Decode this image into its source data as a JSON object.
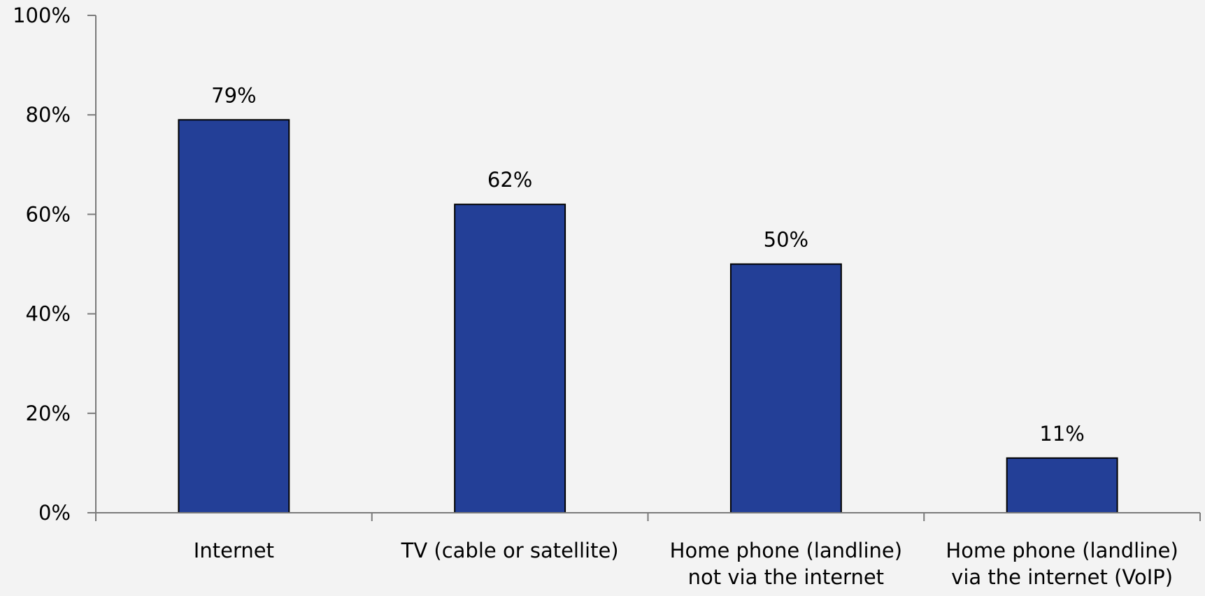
{
  "chart_data": {
    "type": "bar",
    "categories": [
      "Internet",
      "TV (cable or satellite)",
      "Home phone (landline) not via the internet",
      "Home phone (landline) via the internet (VoIP)"
    ],
    "category_lines": [
      [
        "Internet"
      ],
      [
        "TV (cable or satellite)"
      ],
      [
        "Home phone (landline)",
        "not via the internet"
      ],
      [
        "Home phone (landline)",
        "via the internet (VoIP)"
      ]
    ],
    "values": [
      79,
      62,
      50,
      11
    ],
    "data_labels": [
      "79%",
      "62%",
      "50%",
      "11%"
    ],
    "title": "",
    "xlabel": "",
    "ylabel": "",
    "ylim": [
      0,
      100
    ],
    "yticks": [
      0,
      20,
      40,
      60,
      80,
      100
    ],
    "ytick_labels": [
      "0%",
      "20%",
      "40%",
      "60%",
      "80%",
      "100%"
    ],
    "grid": false,
    "legend": "none",
    "bar_color": "#233f97",
    "bar_edge_color": "#000000",
    "axis_color": "#7a7a7a",
    "background_color": "#f3f3f3"
  }
}
